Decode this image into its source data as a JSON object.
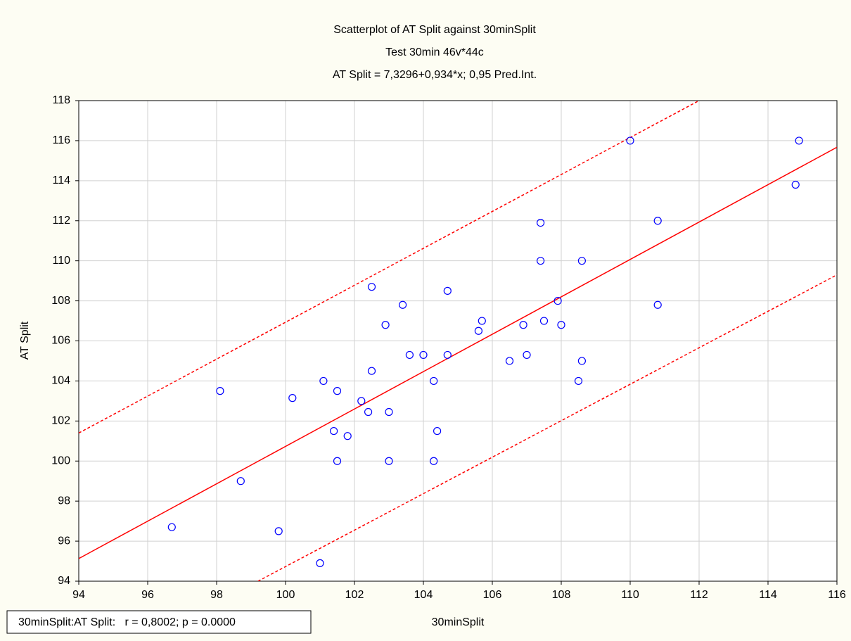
{
  "chart_data": {
    "type": "scatter",
    "title": "Scatterplot of AT Split against 30minSplit",
    "subtitle": "Test 30min 46v*44c",
    "equation": "AT Split = 7,3296+0,934*x; 0,95 Pred.Int.",
    "x_label": "30minSplit",
    "y_label": "AT Split",
    "annotation": "30minSplit:AT Split:   r = 0,8002; p = 0.0000",
    "xlim": [
      94,
      116
    ],
    "ylim": [
      94,
      118
    ],
    "xticks": [
      94,
      96,
      98,
      100,
      102,
      104,
      106,
      108,
      110,
      112,
      114,
      116
    ],
    "yticks": [
      94,
      96,
      98,
      100,
      102,
      104,
      106,
      108,
      110,
      112,
      114,
      116,
      118
    ],
    "grid": true,
    "series": [
      {
        "color": "#0000ff",
        "x": [
          96.7,
          98.1,
          98.7,
          99.8,
          100.2,
          101.0,
          101.1,
          101.4,
          101.5,
          101.5,
          101.8,
          102.2,
          102.4,
          102.5,
          102.5,
          102.9,
          103.0,
          103.0,
          103.4,
          103.6,
          104.0,
          104.3,
          104.3,
          104.4,
          104.7,
          104.7,
          105.6,
          105.7,
          106.5,
          106.9,
          107.0,
          107.4,
          107.4,
          107.5,
          107.9,
          108.0,
          108.5,
          108.6,
          108.6,
          110.0,
          110.8,
          110.8,
          114.8,
          114.9
        ],
        "values": [
          96.7,
          103.5,
          99.0,
          96.5,
          103.15,
          94.9,
          104.0,
          101.5,
          103.5,
          100.0,
          101.25,
          103.0,
          102.45,
          108.7,
          104.5,
          106.8,
          102.45,
          100.0,
          107.8,
          105.3,
          105.3,
          104.0,
          100.0,
          101.5,
          108.5,
          105.3,
          106.5,
          107.0,
          105.0,
          106.8,
          105.3,
          111.9,
          110.0,
          107.0,
          108.0,
          106.8,
          104.0,
          105.0,
          110.0,
          116.0,
          112.0,
          107.8,
          113.8,
          116.0
        ]
      }
    ],
    "lines": [
      {
        "color": "#ff0000",
        "style": "solid",
        "x": [
          94,
          116
        ],
        "values": [
          95.13,
          115.67
        ]
      },
      {
        "color": "#ff0000",
        "style": "dashed",
        "x": [
          94,
          112
        ],
        "values": [
          101.4,
          118
        ]
      },
      {
        "color": "#ff0000",
        "style": "dashed",
        "x": [
          99.2,
          116
        ],
        "values": [
          94,
          109.3
        ]
      }
    ]
  }
}
